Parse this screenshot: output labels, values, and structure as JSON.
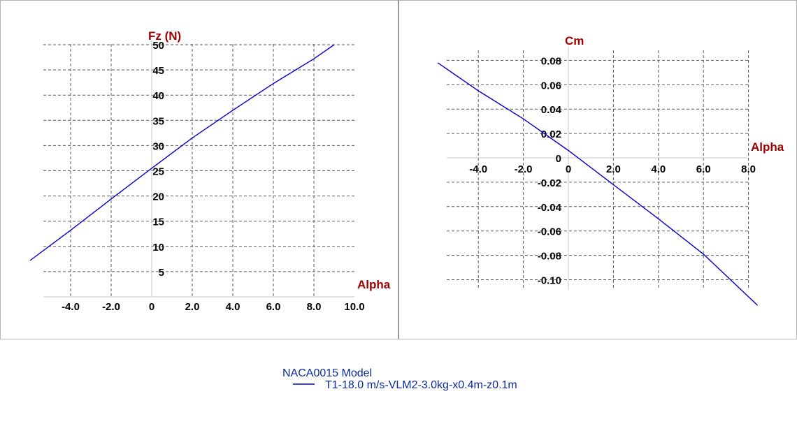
{
  "colors": {
    "series": "#0000cc",
    "axis_title": "#a00000",
    "legend_text": "#0a2b9c",
    "frame": "#b4b4b4",
    "grid": "#5a5a5a"
  },
  "legend": {
    "title": "NACA0015 Model",
    "entry": "T1-18.0 m/s-VLM2-3.0kg-x0.4m-z0.1m"
  },
  "chart_data": [
    {
      "type": "line",
      "xlabel": "Alpha",
      "ylabel": "Fz (N)",
      "xlim": [
        -5.5,
        10.0
      ],
      "ylim": [
        0,
        50
      ],
      "grid": true,
      "x_ticks": [
        {
          "value": -4,
          "label": "-4.0"
        },
        {
          "value": -2,
          "label": "-2.0"
        },
        {
          "value": 0,
          "label": "0"
        },
        {
          "value": 2,
          "label": "2.0"
        },
        {
          "value": 4,
          "label": "4.0"
        },
        {
          "value": 6,
          "label": "6.0"
        },
        {
          "value": 8,
          "label": "8.0"
        },
        {
          "value": 10,
          "label": "10.0"
        }
      ],
      "y_ticks": [
        {
          "value": 5,
          "label": "5"
        },
        {
          "value": 10,
          "label": "10"
        },
        {
          "value": 15,
          "label": "15"
        },
        {
          "value": 20,
          "label": "20"
        },
        {
          "value": 25,
          "label": "25"
        },
        {
          "value": 30,
          "label": "30"
        },
        {
          "value": 35,
          "label": "35"
        },
        {
          "value": 40,
          "label": "40"
        },
        {
          "value": 45,
          "label": "45"
        },
        {
          "value": 50,
          "label": "50"
        }
      ],
      "series": [
        {
          "x": [
            -6.0,
            -4.0,
            -2.0,
            0.0,
            2.0,
            4.0,
            6.0,
            8.0,
            9.0
          ],
          "y": [
            7.2,
            13.2,
            19.4,
            25.5,
            31.5,
            37.0,
            42.3,
            47.2,
            50.0
          ]
        }
      ]
    },
    {
      "type": "line",
      "xlabel": "Alpha",
      "ylabel": "Cm",
      "xlim": [
        -5.5,
        8.0
      ],
      "ylim": [
        -0.11,
        0.08
      ],
      "grid": true,
      "x_ticks": [
        {
          "value": -4,
          "label": "-4.0"
        },
        {
          "value": -2,
          "label": "-2.0"
        },
        {
          "value": 0,
          "label": "0"
        },
        {
          "value": 2,
          "label": "2.0"
        },
        {
          "value": 4,
          "label": "4.0"
        },
        {
          "value": 6,
          "label": "6.0"
        },
        {
          "value": 8,
          "label": "8.0"
        }
      ],
      "y_ticks": [
        {
          "value": 0.08,
          "label": "0.08"
        },
        {
          "value": 0.06,
          "label": "0.06"
        },
        {
          "value": 0.04,
          "label": "0.04"
        },
        {
          "value": 0.02,
          "label": "0.02"
        },
        {
          "value": 0.0,
          "label": "0"
        },
        {
          "value": -0.02,
          "label": "-0.02"
        },
        {
          "value": -0.04,
          "label": "-0.04"
        },
        {
          "value": -0.06,
          "label": "-0.06"
        },
        {
          "value": -0.08,
          "label": "-0.08"
        },
        {
          "value": -0.1,
          "label": "-0.10"
        }
      ],
      "series": [
        {
          "x": [
            -5.8,
            -4.0,
            -2.0,
            0.0,
            2.0,
            4.0,
            6.0,
            8.4
          ],
          "y": [
            0.078,
            0.055,
            0.032,
            0.006,
            -0.022,
            -0.05,
            -0.079,
            -0.121
          ]
        }
      ]
    }
  ]
}
